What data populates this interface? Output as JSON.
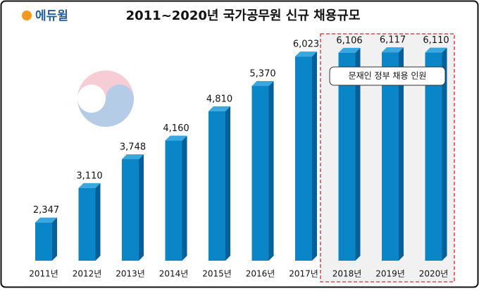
{
  "logo": "에듀윌",
  "chart_data": {
    "type": "bar",
    "title": "2011~2020년 국가공무원 신규 채용규모",
    "categories": [
      "2011년",
      "2012년",
      "2013년",
      "2014년",
      "2015년",
      "2016년",
      "2017년",
      "2018년",
      "2019년",
      "2020년"
    ],
    "values": [
      2347,
      3110,
      3748,
      4160,
      4810,
      5370,
      6023,
      6106,
      6117,
      6110
    ],
    "value_labels": [
      "2,347",
      "3,110",
      "3,748",
      "4,160",
      "4,810",
      "5,370",
      "6,023",
      "6,106",
      "6,117",
      "6,110"
    ],
    "color": "#0a86c8",
    "ylim": [
      1500,
      6650
    ],
    "annotation": "문재인 정부 채용 인원"
  }
}
